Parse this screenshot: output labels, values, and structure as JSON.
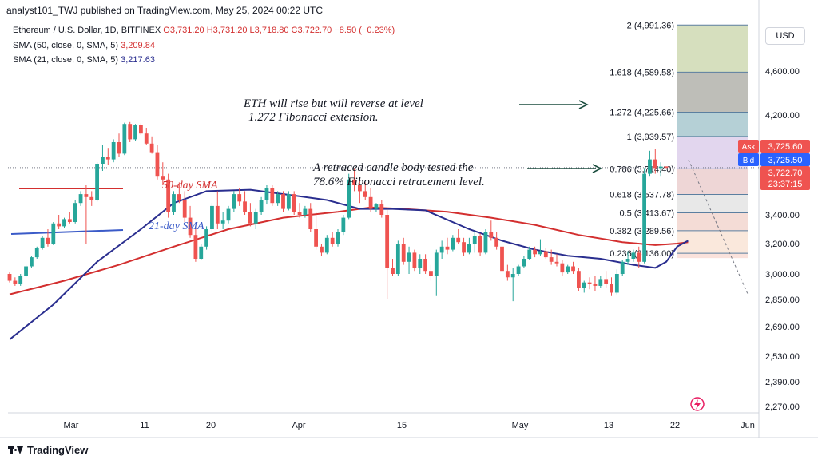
{
  "header": {
    "text": "analyst101_TWJ published on TradingView.com, May 25, 2024 00:22 UTC"
  },
  "legend": {
    "symbol": "Ethereum / U.S. Dollar, 1D, BITFINEX",
    "ohlc": "O3,731.20  H3,731.20  L3,718.80  C3,722.70  −8.50 (−0.23%)",
    "sma50_label": "SMA (50, close, 0, SMA, 5)",
    "sma50_value": "3,209.84",
    "sma21_label": "SMA (21, close, 0, SMA, 5)",
    "sma21_value": "3,217.63"
  },
  "currency": "USD",
  "footer": {
    "brand": "TradingView"
  },
  "colors": {
    "up": "#26a69a",
    "down": "#ef5350",
    "sma50": "#d32f2f",
    "sma21": "#2a2e8f",
    "annotation": "#1b4d3e"
  },
  "chart_data": {
    "type": "candlestick",
    "ylim": [
      2200,
      5050
    ],
    "x_ticks": [
      "Mar",
      "11",
      "20",
      "Apr",
      "15",
      "May",
      "13",
      "22",
      "Jun"
    ],
    "y_ticks": [
      "4,600.00",
      "4,200.00",
      "3,400.00",
      "3,200.00",
      "3,000.00",
      "2,850.00",
      "2,690.00",
      "2,530.00",
      "2,390.00",
      "2,270.00"
    ],
    "price_tags": {
      "ask_label": "Ask",
      "ask": "3,725.60",
      "bid_label": "Bid",
      "bid": "3,725.50",
      "last": "3,722.70",
      "countdown": "23:37:15"
    },
    "fibonacci": [
      {
        "ratio": "2",
        "price": 4991.36,
        "label": "(4,991.36)"
      },
      {
        "ratio": "1.618",
        "price": 4589.58,
        "label": "(4,589.58)"
      },
      {
        "ratio": "1.272",
        "price": 4225.66,
        "label": "(4,225.66)"
      },
      {
        "ratio": "1",
        "price": 3939.57,
        "label": "(3,939.57)"
      },
      {
        "ratio": "0.786",
        "price": 3714.4,
        "label": "(3,714.40)"
      },
      {
        "ratio": "0.618",
        "price": 3537.78,
        "label": "(3,537.78)"
      },
      {
        "ratio": "0.5",
        "price": 3413.67,
        "label": "(3,413.67)"
      },
      {
        "ratio": "0.382",
        "price": 3289.56,
        "label": "(3,289.56)"
      },
      {
        "ratio": "0.236",
        "price": 3136.0,
        "label": "(3,136.00)"
      }
    ],
    "annotations": {
      "eth_rise_1": "ETH  will rise but will reverse at level",
      "eth_rise_2": "1.272 Fibonacci extension.",
      "retrace_1": "A retraced candle body tested the",
      "retrace_2": "78.6% Fibonacci retracement level.",
      "sma50": "50-day SMA",
      "sma21": "21-day SMA"
    },
    "candles": [
      [
        3000,
        3010,
        2950,
        2960
      ],
      [
        2960,
        2980,
        2930,
        2940
      ],
      [
        2940,
        3000,
        2930,
        2990
      ],
      [
        2990,
        3060,
        2980,
        3050
      ],
      [
        3050,
        3120,
        3040,
        3110
      ],
      [
        3110,
        3180,
        3100,
        3170
      ],
      [
        3170,
        3250,
        3160,
        3240
      ],
      [
        3240,
        3300,
        3180,
        3200
      ],
      [
        3200,
        3350,
        3190,
        3340
      ],
      [
        3340,
        3400,
        3300,
        3320
      ],
      [
        3320,
        3380,
        3310,
        3370
      ],
      [
        3370,
        3420,
        3340,
        3350
      ],
      [
        3350,
        3500,
        3340,
        3480
      ],
      [
        3480,
        3560,
        3460,
        3540
      ],
      [
        3540,
        3600,
        3200,
        3520
      ],
      [
        3520,
        3560,
        3460,
        3500
      ],
      [
        3500,
        3760,
        3490,
        3750
      ],
      [
        3750,
        3880,
        3700,
        3800
      ],
      [
        3800,
        3860,
        3740,
        3780
      ],
      [
        3780,
        3920,
        3760,
        3900
      ],
      [
        3900,
        3960,
        3800,
        3820
      ],
      [
        3820,
        4080,
        3810,
        4060
      ],
      [
        4060,
        4090,
        3900,
        3920
      ],
      [
        3920,
        4060,
        3910,
        4050
      ],
      [
        4050,
        4070,
        3950,
        3960
      ],
      [
        3960,
        4000,
        3880,
        3890
      ],
      [
        3890,
        3940,
        3820,
        3830
      ],
      [
        3830,
        3880,
        3640,
        3660
      ],
      [
        3660,
        3760,
        3600,
        3640
      ],
      [
        3640,
        3680,
        3380,
        3420
      ],
      [
        3420,
        3560,
        3400,
        3540
      ],
      [
        3540,
        3620,
        3480,
        3500
      ],
      [
        3500,
        3560,
        3350,
        3380
      ],
      [
        3380,
        3460,
        3240,
        3260
      ],
      [
        3260,
        3320,
        3080,
        3100
      ],
      [
        3100,
        3200,
        3090,
        3180
      ],
      [
        3180,
        3320,
        3160,
        3300
      ],
      [
        3300,
        3480,
        3280,
        3460
      ],
      [
        3460,
        3560,
        3300,
        3340
      ],
      [
        3340,
        3420,
        3300,
        3360
      ],
      [
        3360,
        3460,
        3340,
        3440
      ],
      [
        3440,
        3560,
        3420,
        3540
      ],
      [
        3540,
        3580,
        3460,
        3490
      ],
      [
        3490,
        3560,
        3400,
        3420
      ],
      [
        3420,
        3480,
        3320,
        3340
      ],
      [
        3340,
        3440,
        3300,
        3420
      ],
      [
        3420,
        3520,
        3400,
        3500
      ],
      [
        3500,
        3600,
        3470,
        3580
      ],
      [
        3580,
        3600,
        3460,
        3480
      ],
      [
        3480,
        3560,
        3460,
        3540
      ],
      [
        3540,
        3560,
        3420,
        3440
      ],
      [
        3440,
        3560,
        3430,
        3540
      ],
      [
        3540,
        3560,
        3400,
        3420
      ],
      [
        3420,
        3480,
        3380,
        3400
      ],
      [
        3400,
        3460,
        3380,
        3440
      ],
      [
        3440,
        3480,
        3280,
        3300
      ],
      [
        3300,
        3420,
        3160,
        3180
      ],
      [
        3180,
        3200,
        3120,
        3140
      ],
      [
        3140,
        3260,
        3130,
        3240
      ],
      [
        3240,
        3280,
        3180,
        3200
      ],
      [
        3200,
        3300,
        3180,
        3280
      ],
      [
        3280,
        3400,
        3260,
        3380
      ],
      [
        3380,
        3680,
        3370,
        3640
      ],
      [
        3640,
        3720,
        3560,
        3600
      ],
      [
        3600,
        3640,
        3480,
        3560
      ],
      [
        3560,
        3620,
        3500,
        3520
      ],
      [
        3520,
        3580,
        3420,
        3440
      ],
      [
        3440,
        3480,
        3420,
        3470
      ],
      [
        3470,
        3500,
        3380,
        3400
      ],
      [
        3400,
        3440,
        2850,
        3040
      ],
      [
        3040,
        3100,
        2990,
        3000
      ],
      [
        3000,
        3220,
        2990,
        3200
      ],
      [
        3200,
        3240,
        3060,
        3080
      ],
      [
        3080,
        3180,
        3000,
        3140
      ],
      [
        3140,
        3160,
        3020,
        3040
      ],
      [
        3040,
        3130,
        3000,
        3100
      ],
      [
        3100,
        3130,
        3000,
        3020
      ],
      [
        3020,
        3060,
        2960,
        2990
      ],
      [
        2990,
        3160,
        2870,
        3140
      ],
      [
        3140,
        3220,
        3100,
        3180
      ],
      [
        3180,
        3240,
        3130,
        3160
      ],
      [
        3160,
        3260,
        3150,
        3240
      ],
      [
        3240,
        3300,
        3200,
        3210
      ],
      [
        3210,
        3240,
        3120,
        3140
      ],
      [
        3140,
        3240,
        3130,
        3200
      ],
      [
        3200,
        3290,
        3140,
        3250
      ],
      [
        3250,
        3270,
        3120,
        3140
      ],
      [
        3140,
        3300,
        3130,
        3280
      ],
      [
        3280,
        3360,
        3220,
        3240
      ],
      [
        3240,
        3280,
        3160,
        3180
      ],
      [
        3180,
        3220,
        3000,
        3020
      ],
      [
        3020,
        3060,
        2960,
        2980
      ],
      [
        2980,
        3040,
        2840,
        3000
      ],
      [
        3000,
        3060,
        2990,
        3050
      ],
      [
        3050,
        3120,
        3040,
        3100
      ],
      [
        3100,
        3180,
        3090,
        3160
      ],
      [
        3160,
        3180,
        3110,
        3130
      ],
      [
        3130,
        3230,
        3120,
        3150
      ],
      [
        3150,
        3170,
        3100,
        3110
      ],
      [
        3110,
        3160,
        3060,
        3080
      ],
      [
        3080,
        3130,
        3050,
        3070
      ],
      [
        3070,
        3090,
        2990,
        3010
      ],
      [
        3010,
        3060,
        3000,
        3050
      ],
      [
        3050,
        3080,
        3000,
        3020
      ],
      [
        3020,
        3040,
        2900,
        2920
      ],
      [
        2920,
        2960,
        2890,
        2950
      ],
      [
        2950,
        2980,
        2910,
        2940
      ],
      [
        2940,
        2990,
        2900,
        2930
      ],
      [
        2930,
        2990,
        2920,
        2970
      ],
      [
        2970,
        3020,
        2920,
        2940
      ],
      [
        2940,
        2980,
        2870,
        2890
      ],
      [
        2890,
        3030,
        2880,
        3000
      ],
      [
        3000,
        3090,
        2990,
        3080
      ],
      [
        3080,
        3150,
        3060,
        3100
      ],
      [
        3100,
        3160,
        3080,
        3140
      ],
      [
        3140,
        3180,
        3040,
        3080
      ],
      [
        3080,
        3720,
        3070,
        3680
      ],
      [
        3680,
        3840,
        3660,
        3780
      ],
      [
        3780,
        3850,
        3680,
        3720
      ],
      [
        3720,
        3760,
        3660,
        3730
      ],
      [
        3731.2,
        3731.2,
        3718.8,
        3722.7
      ]
    ],
    "sma21": [
      [
        0,
        2620
      ],
      [
        8,
        2820
      ],
      [
        16,
        3080
      ],
      [
        24,
        3300
      ],
      [
        30,
        3480
      ],
      [
        36,
        3560
      ],
      [
        44,
        3570
      ],
      [
        52,
        3530
      ],
      [
        58,
        3500
      ],
      [
        64,
        3440
      ],
      [
        70,
        3440
      ],
      [
        76,
        3430
      ],
      [
        84,
        3300
      ],
      [
        90,
        3220
      ],
      [
        96,
        3160
      ],
      [
        102,
        3120
      ],
      [
        108,
        3100
      ],
      [
        114,
        3060
      ],
      [
        118,
        3040
      ],
      [
        120,
        3080
      ],
      [
        122,
        3180
      ],
      [
        124,
        3220
      ]
    ],
    "sma50": [
      [
        0,
        2880
      ],
      [
        10,
        2960
      ],
      [
        20,
        3060
      ],
      [
        30,
        3180
      ],
      [
        40,
        3300
      ],
      [
        50,
        3380
      ],
      [
        60,
        3420
      ],
      [
        66,
        3450
      ],
      [
        72,
        3440
      ],
      [
        80,
        3420
      ],
      [
        88,
        3380
      ],
      [
        96,
        3330
      ],
      [
        104,
        3260
      ],
      [
        112,
        3210
      ],
      [
        118,
        3190
      ],
      [
        122,
        3200
      ],
      [
        124,
        3210
      ]
    ]
  }
}
